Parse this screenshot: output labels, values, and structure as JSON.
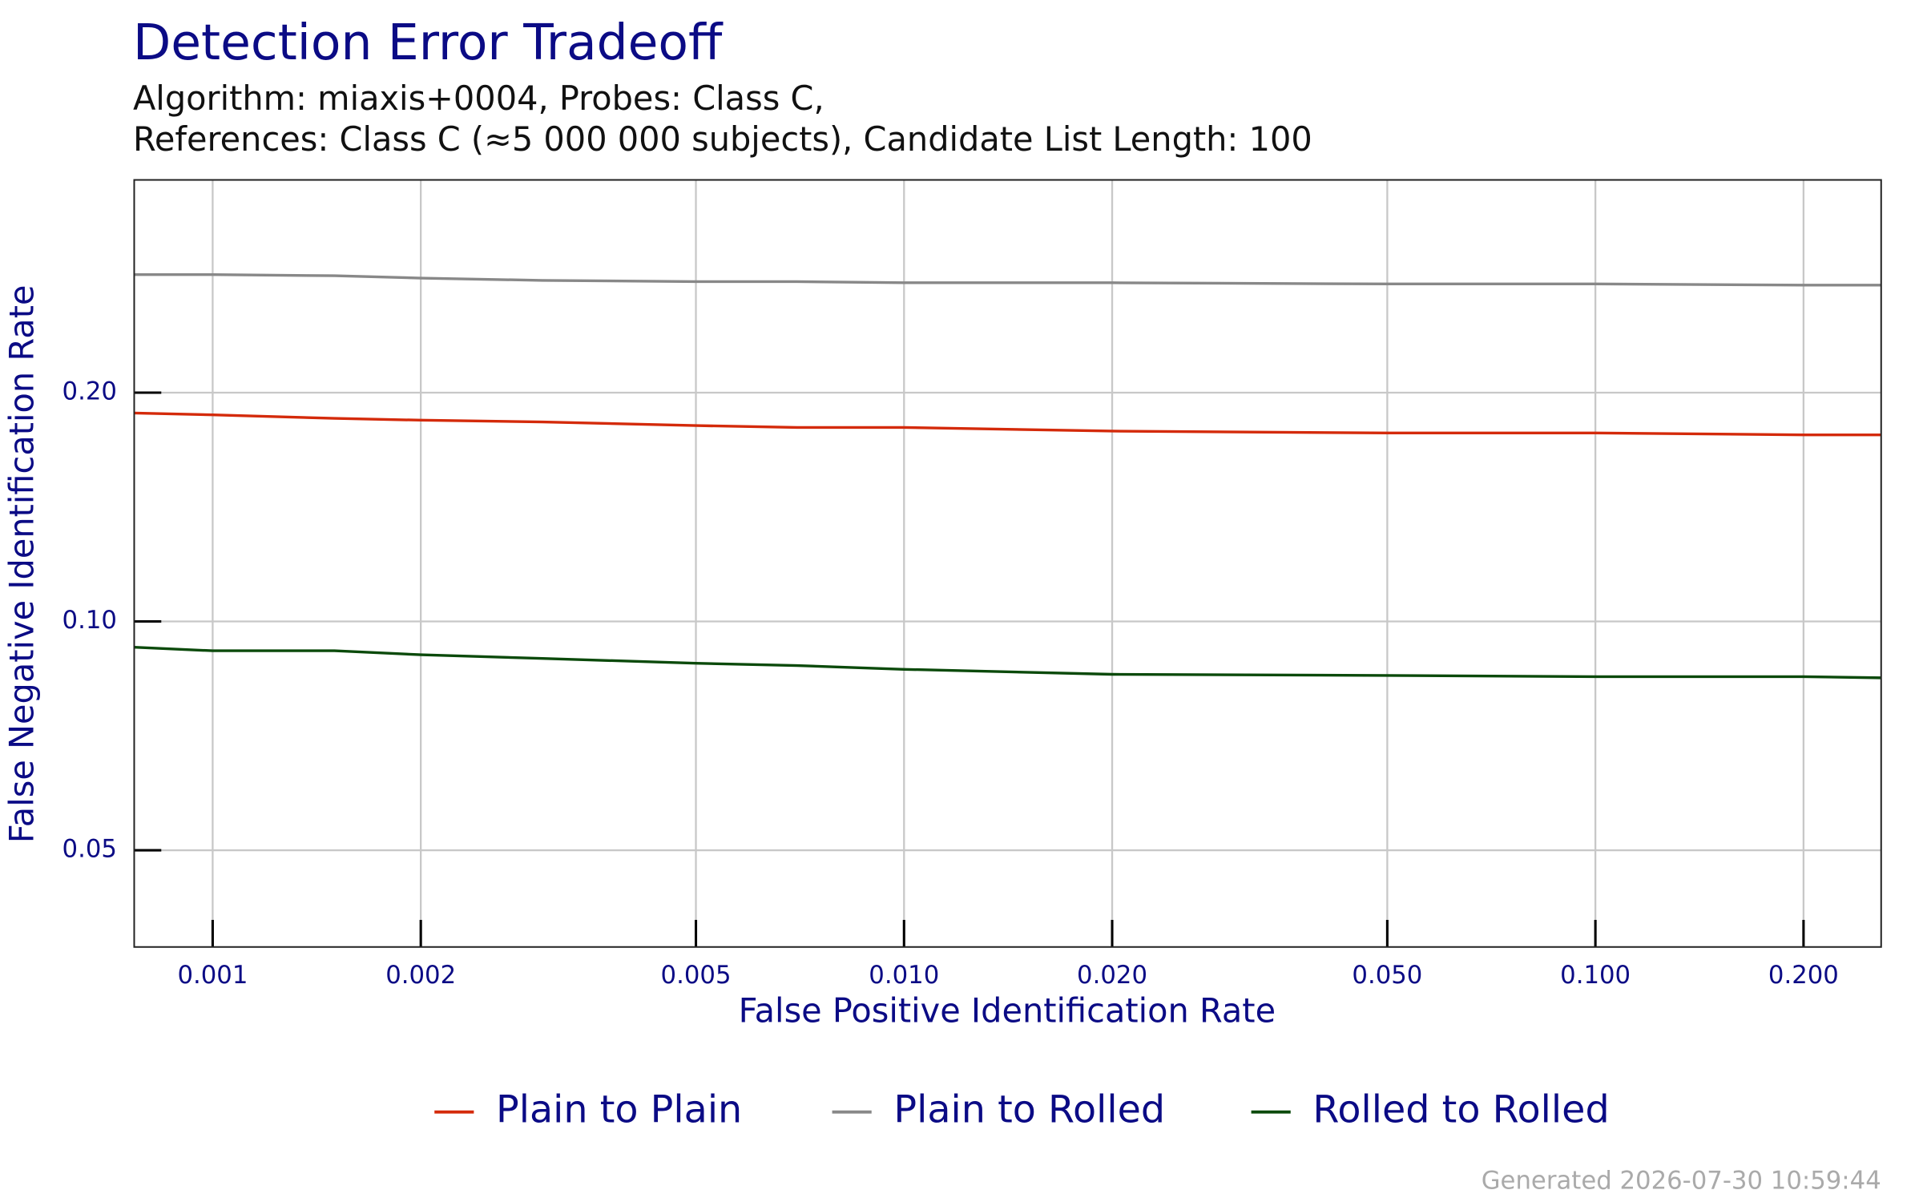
{
  "chart_data": {
    "type": "line",
    "title": "Detection Error Tradeoff",
    "subtitle": [
      "Algorithm: miaxis+0004, Probes: Class C,",
      "References: Class C (≈5 000 000 subjects), Candidate List Length: 100"
    ],
    "x_label": "False Positive Identification Rate",
    "y_label": "False Negative Identification Rate",
    "x_scale": "log",
    "y_scale": "log",
    "grid": true,
    "legend": "bottom",
    "xlim": [
      0.00077,
      0.259
    ],
    "ylim": [
      0.0373,
      0.381
    ],
    "xticks": [
      0.001,
      0.002,
      0.005,
      {
        "value": 0.01,
        "label": "0.010"
      },
      {
        "value": 0.02,
        "label": "0.020"
      },
      {
        "value": 0.05,
        "label": "0.050"
      },
      {
        "value": 0.1,
        "label": "0.100"
      },
      {
        "value": 0.2,
        "label": "0.200"
      }
    ],
    "yticks": [
      0.05,
      {
        "value": 0.1,
        "label": "0.10"
      },
      {
        "value": 0.2,
        "label": "0.20"
      }
    ],
    "x": [
      0.00077,
      0.001,
      0.0015,
      0.002,
      0.003,
      0.005,
      0.007,
      0.01,
      0.02,
      0.05,
      0.1,
      0.2,
      0.259
    ],
    "series": [
      {
        "name": "Plain to Plain",
        "color": "#d42a0a",
        "values": [
          0.188,
          0.187,
          0.185,
          0.184,
          0.183,
          0.181,
          0.18,
          0.18,
          0.178,
          0.177,
          0.177,
          0.176,
          0.176
        ]
      },
      {
        "name": "Plain to Rolled",
        "color": "#888888",
        "values": [
          0.286,
          0.286,
          0.285,
          0.283,
          0.281,
          0.28,
          0.28,
          0.279,
          0.279,
          0.278,
          0.278,
          0.277,
          0.277
        ]
      },
      {
        "name": "Rolled to Rolled",
        "color": "#0b4a0b",
        "values": [
          0.0925,
          0.0915,
          0.0915,
          0.0904,
          0.0894,
          0.0881,
          0.0875,
          0.0865,
          0.0852,
          0.0849,
          0.0846,
          0.0846,
          0.0843
        ]
      }
    ],
    "footer": "Generated 2026-07-30 10:59:44"
  }
}
